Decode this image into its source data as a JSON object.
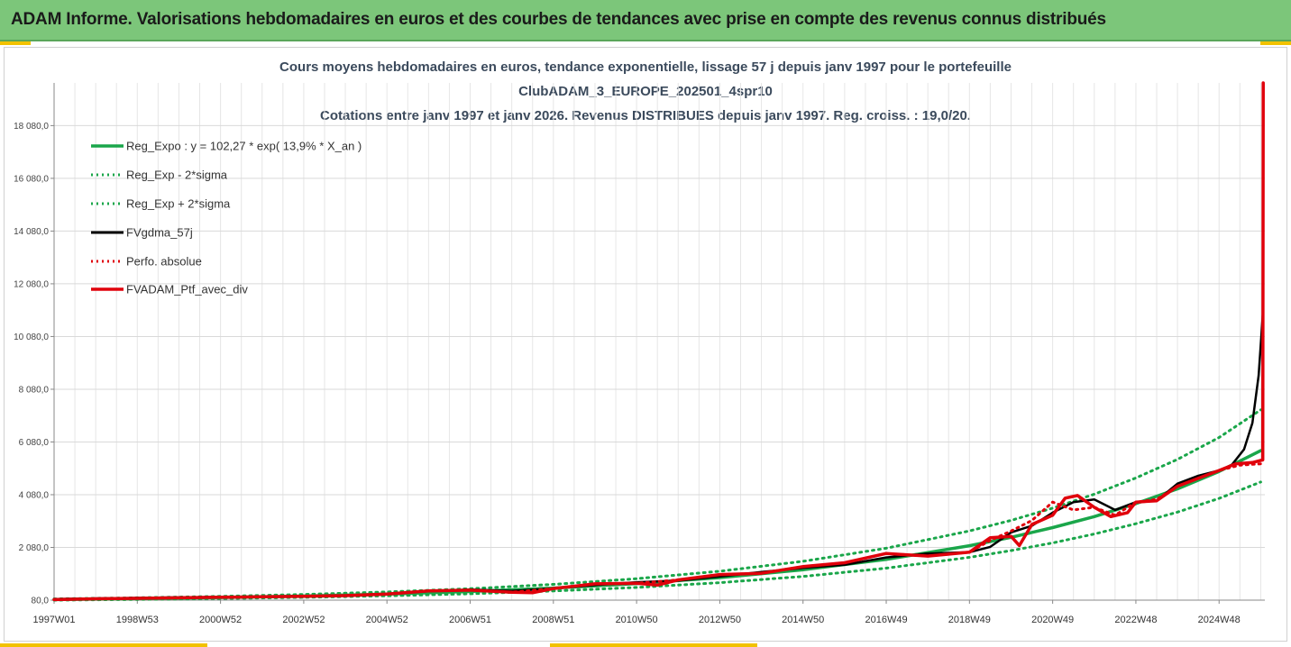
{
  "banner": {
    "title": "ADAM Informe. Valorisations hebdomadaires en euros et des courbes de tendances avec prise en compte des revenus connus distribués"
  },
  "colors": {
    "banner_bg": "#7cc67a",
    "accent": "#f2c200",
    "reg_expo": "#1aa64a",
    "fvgdma": "#000000",
    "portfolio": "#e0000b"
  },
  "chart_data": {
    "type": "line",
    "title_lines": [
      "Cours moyens hebdomadaires  en euros, tendance exponentielle, lissage 57 j depuis janv 1997 pour le portefeuille",
      "ClubADAM_3_EUROPE_202501_4spr10",
      "Cotations entre janv 1997 et janv 2026. Revenus DISTRIBUES depuis janv 1997. Reg. croiss. : 19,0/20."
    ],
    "xlabel": "",
    "ylabel": "",
    "ylim": [
      80,
      19700
    ],
    "yticks": [
      "80,0",
      "2 080,0",
      "4 080,0",
      "6 080,0",
      "8 080,0",
      "10 080,0",
      "12 080,0",
      "14 080,0",
      "16 080,0",
      "18 080,0"
    ],
    "ytick_values": [
      80,
      2080,
      4080,
      6080,
      8080,
      10080,
      12080,
      14080,
      16080,
      18080
    ],
    "x_range_years": [
      1997.0,
      2026.1
    ],
    "xticks": [
      "1997W01",
      "1998W53",
      "2000W52",
      "2002W52",
      "2004W52",
      "2006W51",
      "2008W51",
      "2010W50",
      "2012W50",
      "2014W50",
      "2016W49",
      "2018W49",
      "2020W49",
      "2022W48",
      "2024W48"
    ],
    "xtick_values": [
      1997.0,
      1999.0,
      2001.0,
      2003.0,
      2005.0,
      2007.0,
      2009.0,
      2011.0,
      2013.0,
      2015.0,
      2017.0,
      2019.0,
      2021.0,
      2023.0,
      2025.0
    ],
    "grid": true,
    "legend_position": "top-left",
    "series": [
      {
        "name": "Reg_Expo : y = 102,27 * exp( 13,9% *  X_an )",
        "style": "solid",
        "x": [
          1997.0,
          1999.0,
          2001.0,
          2003.0,
          2005.0,
          2007.0,
          2009.0,
          2011.0,
          2013.0,
          2015.0,
          2017.0,
          2019.0,
          2020.0,
          2021.0,
          2022.0,
          2023.0,
          2024.0,
          2025.0,
          2026.0
        ],
        "values": [
          102,
          135,
          178,
          234,
          309,
          407,
          538,
          709,
          934,
          1232,
          1625,
          2144,
          2462,
          2830,
          3250,
          3740,
          4300,
          4960,
          5750
        ]
      },
      {
        "name": "Reg_Exp - 2*sigma",
        "style": "dotted",
        "x": [
          1997.0,
          1999.0,
          2001.0,
          2003.0,
          2005.0,
          2007.0,
          2009.0,
          2011.0,
          2013.0,
          2015.0,
          2017.0,
          2019.0,
          2020.0,
          2021.0,
          2022.0,
          2023.0,
          2024.0,
          2025.0,
          2026.0
        ],
        "values": [
          81,
          107,
          141,
          186,
          245,
          324,
          427,
          563,
          742,
          980,
          1292,
          1705,
          1960,
          2250,
          2590,
          2980,
          3420,
          3940,
          4560
        ]
      },
      {
        "name": "Reg_Exp + 2*sigma",
        "style": "dotted",
        "x": [
          1997.0,
          1999.0,
          2001.0,
          2003.0,
          2005.0,
          2007.0,
          2009.0,
          2011.0,
          2013.0,
          2015.0,
          2017.0,
          2019.0,
          2020.0,
          2021.0,
          2022.0,
          2023.0,
          2024.0,
          2025.0,
          2026.0
        ],
        "values": [
          129,
          170,
          224,
          296,
          390,
          514,
          678,
          894,
          1178,
          1554,
          2050,
          2705,
          3105,
          3570,
          4100,
          4715,
          5420,
          6250,
          7300
        ]
      },
      {
        "name": "FVgdma_57j",
        "style": "solid",
        "x": [
          1997.0,
          1998.0,
          1999.0,
          2000.0,
          2001.0,
          2002.0,
          2003.0,
          2004.0,
          2005.0,
          2006.0,
          2007.0,
          2008.0,
          2009.0,
          2010.0,
          2011.0,
          2012.0,
          2013.0,
          2014.0,
          2015.0,
          2016.0,
          2017.0,
          2018.0,
          2019.0,
          2019.5,
          2020.0,
          2020.5,
          2021.0,
          2021.5,
          2022.0,
          2022.5,
          2023.0,
          2023.5,
          2024.0,
          2024.5,
          2025.0,
          2025.3,
          2025.6,
          2025.8,
          2025.95,
          2026.05
        ],
        "values": [
          120,
          145,
          165,
          185,
          200,
          215,
          235,
          260,
          320,
          420,
          480,
          430,
          520,
          650,
          760,
          820,
          980,
          1150,
          1300,
          1420,
          1700,
          1850,
          1900,
          2100,
          2650,
          2900,
          3400,
          3800,
          3900,
          3500,
          3800,
          3850,
          4500,
          4800,
          5000,
          5200,
          5800,
          6800,
          8600,
          10900
        ]
      },
      {
        "name": "Perfo. absolue",
        "style": "dotted",
        "x": [
          1997.0,
          1998.0,
          1999.0,
          2000.0,
          2001.0,
          2002.0,
          2003.0,
          2004.0,
          2005.0,
          2006.0,
          2007.0,
          2008.0,
          2009.0,
          2010.0,
          2011.0,
          2012.0,
          2013.0,
          2014.0,
          2015.0,
          2016.0,
          2017.0,
          2018.0,
          2019.0,
          2019.5,
          2020.0,
          2020.5,
          2021.0,
          2021.5,
          2022.0,
          2022.5,
          2023.0,
          2023.5,
          2024.0,
          2024.5,
          2025.0,
          2025.5,
          2026.0
        ],
        "values": [
          100,
          130,
          150,
          170,
          190,
          205,
          225,
          250,
          310,
          430,
          460,
          380,
          520,
          700,
          720,
          850,
          1050,
          1100,
          1350,
          1500,
          1850,
          1750,
          1900,
          2350,
          2700,
          3100,
          3800,
          3500,
          3600,
          3300,
          3800,
          3900,
          4400,
          4700,
          5000,
          5200,
          5250
        ]
      },
      {
        "name": "FVADAM_Ptf_avec_div",
        "style": "solid",
        "x": [
          1997.0,
          1998.0,
          1999.0,
          2000.0,
          2001.0,
          2002.0,
          2003.0,
          2004.0,
          2005.0,
          2006.0,
          2007.0,
          2008.0,
          2008.5,
          2009.0,
          2010.0,
          2011.0,
          2011.5,
          2012.0,
          2013.0,
          2014.0,
          2015.0,
          2016.0,
          2017.0,
          2018.0,
          2019.0,
          2019.5,
          2020.0,
          2020.2,
          2020.5,
          2021.0,
          2021.3,
          2021.6,
          2022.0,
          2022.4,
          2022.8,
          2023.0,
          2023.5,
          2024.0,
          2024.5,
          2025.0,
          2025.4,
          2025.8,
          2026.05,
          2026.06
        ],
        "values": [
          100,
          130,
          150,
          170,
          190,
          205,
          225,
          250,
          310,
          430,
          460,
          380,
          360,
          520,
          700,
          720,
          650,
          850,
          1050,
          1100,
          1350,
          1500,
          1850,
          1750,
          1900,
          2450,
          2500,
          2150,
          2950,
          3300,
          3950,
          4050,
          3600,
          3250,
          3400,
          3800,
          3850,
          4400,
          4700,
          5000,
          5250,
          5300,
          5400,
          19700
        ]
      }
    ]
  }
}
